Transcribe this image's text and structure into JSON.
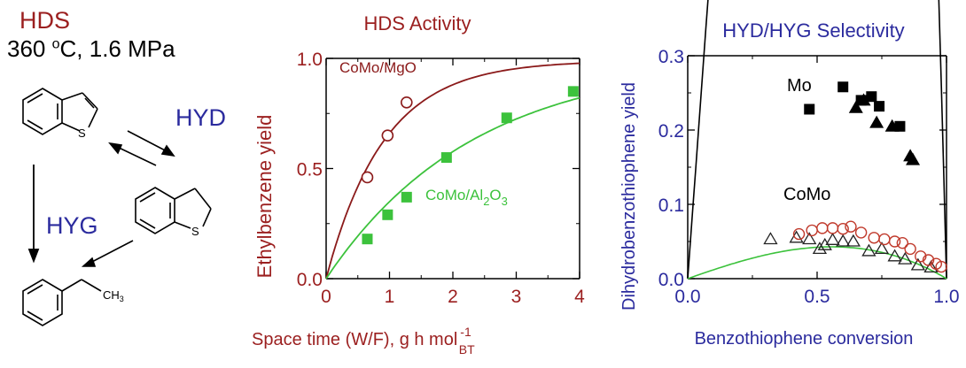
{
  "colors": {
    "title_red": "#9b1f1f",
    "label_blue": "#2b2b9e",
    "como_mgo": "#8b1a1a",
    "como_al2o3": "#3cc23c",
    "black": "#000000"
  },
  "scheme": {
    "title": "HDS",
    "conditions_prefix": "360 ",
    "conditions_degree": "o",
    "conditions_suffix": "C, 1.6 MPa",
    "hyd": "HYD",
    "hyg": "HYG",
    "sulfur": "S",
    "ch3": "CH",
    "ch3_sub": "3"
  },
  "chart_data": [
    {
      "type": "line",
      "title": "HDS Activity",
      "xlabel": "Space time (W/F), g h mol",
      "xlabel_sup": "-1",
      "xlabel_sub": "BT",
      "ylabel": "Ethylbenzene yield",
      "xlim": [
        0,
        4
      ],
      "ylim": [
        0,
        1
      ],
      "xticks": [
        "0",
        "1",
        "2",
        "3",
        "4"
      ],
      "yticks": [
        "0.0",
        "0.5",
        "1.0"
      ],
      "series": [
        {
          "name": "CoMo/MgO",
          "marker": "open-circle",
          "points": [
            [
              0.65,
              0.46
            ],
            [
              0.97,
              0.65
            ],
            [
              1.27,
              0.8
            ]
          ],
          "fit_rate": 1.1,
          "fit_max": 0.99
        },
        {
          "name": "CoMo/Al2O3",
          "name_parts": [
            "CoMo/Al",
            "2",
            "O",
            "3"
          ],
          "marker": "filled-square",
          "points": [
            [
              0.65,
              0.18
            ],
            [
              0.97,
              0.29
            ],
            [
              1.27,
              0.37
            ],
            [
              1.9,
              0.55
            ],
            [
              2.85,
              0.73
            ],
            [
              3.9,
              0.85
            ]
          ],
          "fit_rate": 0.43,
          "fit_max": 1.0
        }
      ]
    },
    {
      "type": "scatter",
      "title": "HYD/HYG Selectivity",
      "xlabel": "Benzothiophene conversion",
      "ylabel": "Dihydrobenzothiophene yield",
      "xlim": [
        0,
        1
      ],
      "ylim": [
        0,
        0.3
      ],
      "xticks": [
        "0.0",
        "0.5",
        "1.0"
      ],
      "yticks": [
        "0.0",
        "0.1",
        "0.2",
        "0.3"
      ],
      "annotations": [
        "Mo",
        "CoMo"
      ],
      "series": [
        {
          "name": "Mo",
          "color": "#000000",
          "markers": {
            "filled-square": [
              [
                0.47,
                0.228
              ],
              [
                0.6,
                0.258
              ],
              [
                0.67,
                0.24
              ],
              [
                0.71,
                0.245
              ],
              [
                0.74,
                0.232
              ],
              [
                0.82,
                0.205
              ]
            ],
            "filled-triangle": [
              [
                0.65,
                0.23
              ],
              [
                0.68,
                0.24
              ],
              [
                0.73,
                0.21
              ],
              [
                0.79,
                0.205
              ],
              [
                0.86,
                0.165
              ],
              [
                0.87,
                0.16
              ]
            ]
          },
          "fit_k": 4.8,
          "fit_n": 2.8
        },
        {
          "name": "CoMo",
          "markers": {
            "open-circle": [
              [
                0.43,
                0.06
              ],
              [
                0.48,
                0.065
              ],
              [
                0.52,
                0.068
              ],
              [
                0.56,
                0.068
              ],
              [
                0.6,
                0.067
              ],
              [
                0.63,
                0.07
              ],
              [
                0.67,
                0.062
              ],
              [
                0.72,
                0.055
              ],
              [
                0.76,
                0.053
              ],
              [
                0.8,
                0.05
              ],
              [
                0.83,
                0.048
              ],
              [
                0.86,
                0.04
              ],
              [
                0.9,
                0.03
              ],
              [
                0.93,
                0.025
              ],
              [
                0.96,
                0.02
              ],
              [
                0.98,
                0.016
              ]
            ],
            "open-triangle": [
              [
                0.32,
                0.053
              ],
              [
                0.42,
                0.055
              ],
              [
                0.47,
                0.053
              ],
              [
                0.51,
                0.04
              ],
              [
                0.53,
                0.045
              ],
              [
                0.56,
                0.052
              ],
              [
                0.6,
                0.05
              ],
              [
                0.64,
                0.05
              ],
              [
                0.7,
                0.037
              ],
              [
                0.75,
                0.04
              ],
              [
                0.8,
                0.03
              ],
              [
                0.84,
                0.026
              ],
              [
                0.89,
                0.018
              ],
              [
                0.94,
                0.015
              ]
            ]
          },
          "circle_color": "#c0392b",
          "triangle_color": "#222222",
          "fit_color": "#3cc23c",
          "fit_k": 0.122,
          "fit_n": 1.7
        }
      ]
    }
  ]
}
